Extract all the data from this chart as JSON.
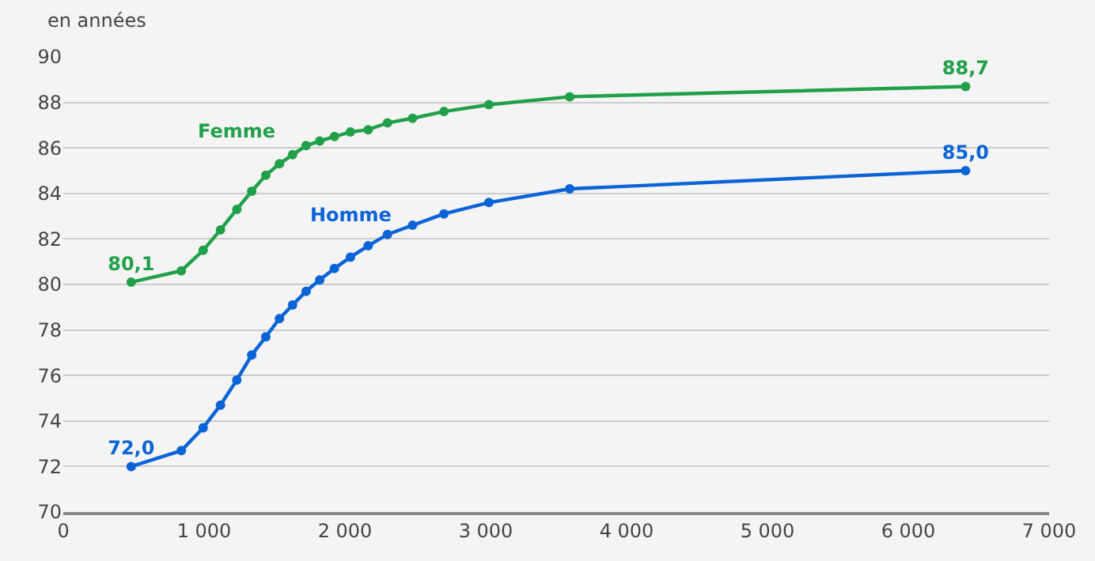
{
  "chart_data": {
    "type": "line",
    "ylabel": "en années",
    "x": [
      482,
      838,
      993,
      1116,
      1232,
      1338,
      1438,
      1535,
      1628,
      1724,
      1821,
      1925,
      2039,
      2165,
      2302,
      2480,
      2703,
      3022,
      3596,
      6407
    ],
    "series": [
      {
        "name": "Femme",
        "color": "#21a04a",
        "values": [
          80.1,
          80.6,
          81.5,
          82.4,
          83.3,
          84.1,
          84.8,
          85.3,
          85.7,
          86.1,
          86.3,
          86.5,
          86.7,
          86.8,
          87.1,
          87.3,
          87.6,
          87.9,
          88.25,
          88.7
        ],
        "value_labels": [
          "80,1",
          null,
          null,
          null,
          null,
          null,
          null,
          null,
          null,
          null,
          null,
          null,
          null,
          null,
          null,
          null,
          null,
          null,
          null,
          "88,7"
        ]
      },
      {
        "name": "Homme",
        "color": "#0a64d8",
        "values": [
          72.0,
          72.7,
          73.7,
          74.7,
          75.8,
          76.9,
          77.7,
          78.5,
          79.1,
          79.7,
          80.2,
          80.7,
          81.2,
          81.7,
          82.2,
          82.6,
          83.1,
          83.6,
          84.2,
          85.0
        ],
        "value_labels": [
          "72,0",
          null,
          null,
          null,
          null,
          null,
          null,
          null,
          null,
          null,
          null,
          null,
          null,
          null,
          null,
          null,
          null,
          null,
          null,
          "85,0"
        ]
      }
    ],
    "xlim": [
      0,
      7000
    ],
    "xticks": [
      0,
      {
        "value": 1000,
        "label": "1 000"
      },
      {
        "value": 2000,
        "label": "2 000"
      },
      {
        "value": 3000,
        "label": "3 000"
      },
      {
        "value": 4000,
        "label": "4 000"
      },
      {
        "value": 5000,
        "label": "5 000"
      },
      {
        "value": 6000,
        "label": "6 000"
      },
      {
        "value": 7000,
        "label": "7 000"
      }
    ],
    "ylim": [
      70,
      90
    ],
    "yticks": [
      70,
      72,
      74,
      76,
      78,
      80,
      82,
      84,
      86,
      88,
      90
    ],
    "grid": "y",
    "marker": "circle",
    "line_style": "solid",
    "legend": false
  }
}
